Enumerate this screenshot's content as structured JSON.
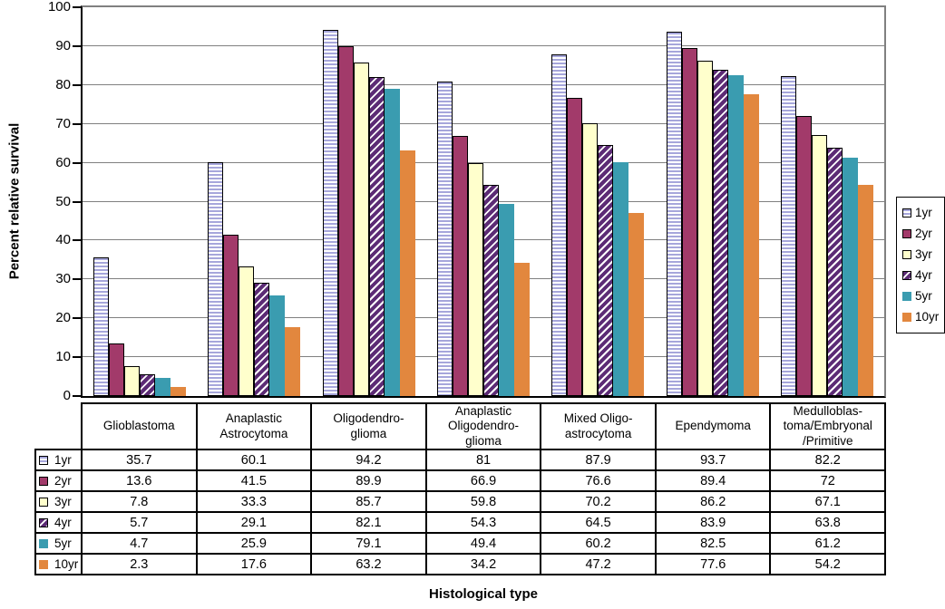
{
  "chart_data": {
    "type": "bar",
    "title": "",
    "xlabel": "Histological type",
    "ylabel": "Percent relative survival",
    "ylim": [
      0,
      100
    ],
    "y_ticks": [
      0,
      10,
      20,
      30,
      40,
      50,
      60,
      70,
      80,
      90,
      100
    ],
    "grid": true,
    "legend_position": "right",
    "data_table_shown": true,
    "categories": [
      "Glioblastoma",
      "Anaplastic\nAstrocytoma",
      "Oligodendro-\nglioma",
      "Anaplastic\nOligodendro-\nglioma",
      "Mixed Oligo-\nastrocytoma",
      "Ependymoma",
      "Medulloblas-\ntoma/Embryonal\n/Primitive"
    ],
    "series": [
      {
        "name": "1yr",
        "values": [
          35.7,
          60.1,
          94.2,
          81,
          87.9,
          93.7,
          82.2
        ],
        "color": "#A6A6DB",
        "pattern": "horizontal-stripes",
        "border_color": "#000000"
      },
      {
        "name": "2yr",
        "values": [
          13.6,
          41.5,
          89.9,
          66.9,
          76.6,
          89.4,
          72
        ],
        "color": "#A23A6A",
        "pattern": "solid",
        "border_color": "#000000"
      },
      {
        "name": "3yr",
        "values": [
          7.8,
          33.3,
          85.7,
          59.8,
          70.2,
          86.2,
          67.1
        ],
        "color": "#FFFFCC",
        "pattern": "solid",
        "border_color": "#000000"
      },
      {
        "name": "4yr",
        "values": [
          5.7,
          29.1,
          82.1,
          54.3,
          64.5,
          83.9,
          63.8
        ],
        "color": "#5C2B75",
        "pattern": "diagonal-stripes",
        "border_color": "#000000"
      },
      {
        "name": "5yr",
        "values": [
          4.7,
          25.9,
          79.1,
          49.4,
          60.2,
          82.5,
          61.2
        ],
        "color": "#3A9CB0",
        "pattern": "solid",
        "border_color": null
      },
      {
        "name": "10yr",
        "values": [
          2.3,
          17.6,
          63.2,
          34.2,
          47.2,
          77.6,
          54.2
        ],
        "color": "#E2873E",
        "pattern": "solid",
        "border_color": null
      }
    ]
  },
  "colors": {
    "gridline": "#808080",
    "axis": "#000000",
    "plot_border": "#808080",
    "background": "#FFFFFF"
  }
}
